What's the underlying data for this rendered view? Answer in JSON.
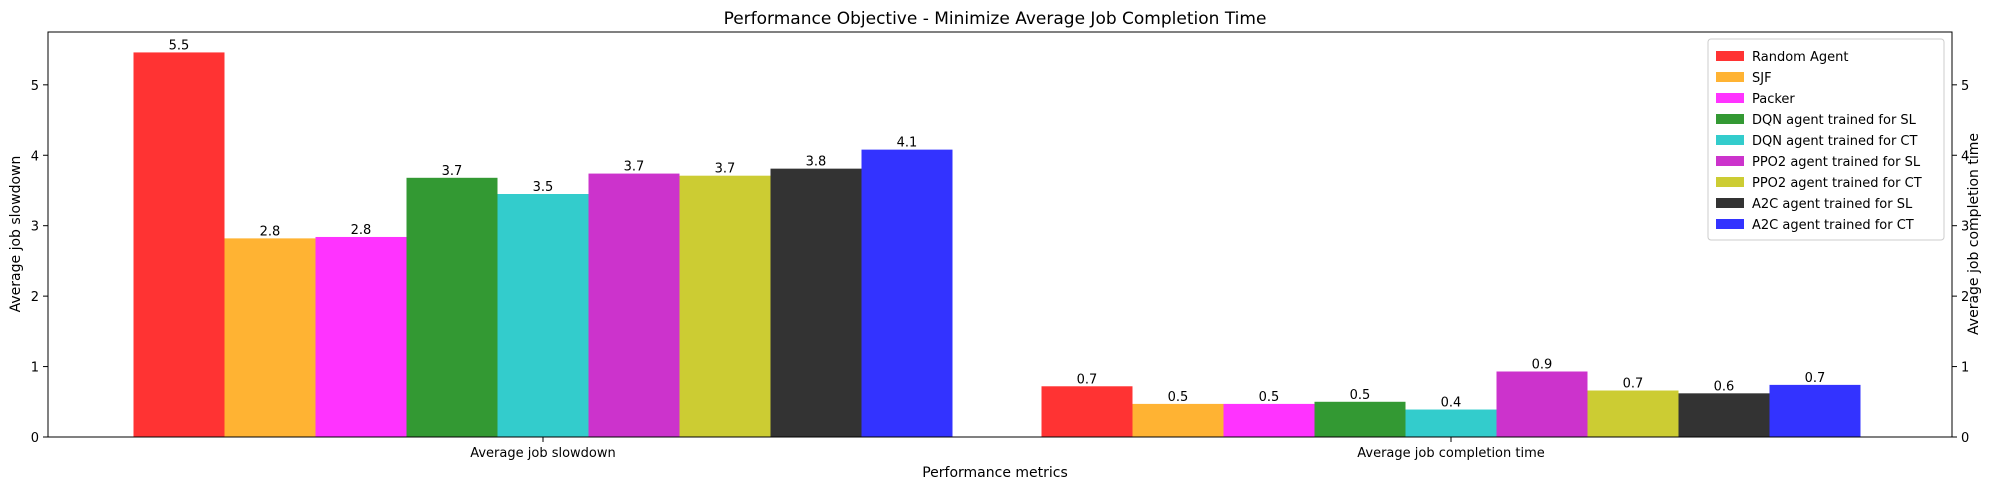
{
  "chart_data": {
    "type": "bar",
    "title": "Performance Objective - Minimize Average Job Completion Time",
    "xlabel": "Performance metrics",
    "ylabel_left": "Average job slowdown",
    "ylabel_right": "Average job completion time",
    "categories": [
      "Average job slowdown",
      "Average job completion time"
    ],
    "ylim": [
      0,
      5.75
    ],
    "yticks": [
      0,
      1,
      2,
      3,
      4,
      5
    ],
    "grid": false,
    "legend_position": "top-right",
    "series": [
      {
        "name": "Random Agent",
        "color": "#ff3333",
        "values": [
          5.46,
          0.72
        ],
        "labels": [
          "5.5",
          "0.7"
        ]
      },
      {
        "name": "SJF",
        "color": "#ffb333",
        "values": [
          2.82,
          0.47
        ],
        "labels": [
          "2.8",
          "0.5"
        ]
      },
      {
        "name": "Packer",
        "color": "#ff33ff",
        "values": [
          2.84,
          0.47
        ],
        "labels": [
          "2.8",
          "0.5"
        ]
      },
      {
        "name": "DQN agent trained for SL",
        "color": "#339933",
        "values": [
          3.68,
          0.5
        ],
        "labels": [
          "3.7",
          "0.5"
        ]
      },
      {
        "name": "DQN agent trained for CT",
        "color": "#33cccc",
        "values": [
          3.45,
          0.39
        ],
        "labels": [
          "3.5",
          "0.4"
        ]
      },
      {
        "name": "PPO2 agent trained for SL",
        "color": "#cc33cc",
        "values": [
          3.74,
          0.93
        ],
        "labels": [
          "3.7",
          "0.9"
        ]
      },
      {
        "name": "PPO2 agent trained for CT",
        "color": "#cccc33",
        "values": [
          3.71,
          0.66
        ],
        "labels": [
          "3.7",
          "0.7"
        ]
      },
      {
        "name": "A2C agent trained for SL",
        "color": "#333333",
        "values": [
          3.81,
          0.62
        ],
        "labels": [
          "3.8",
          "0.6"
        ]
      },
      {
        "name": "A2C agent trained for CT",
        "color": "#3333ff",
        "values": [
          4.08,
          0.74
        ],
        "labels": [
          "4.1",
          "0.7"
        ]
      }
    ]
  }
}
